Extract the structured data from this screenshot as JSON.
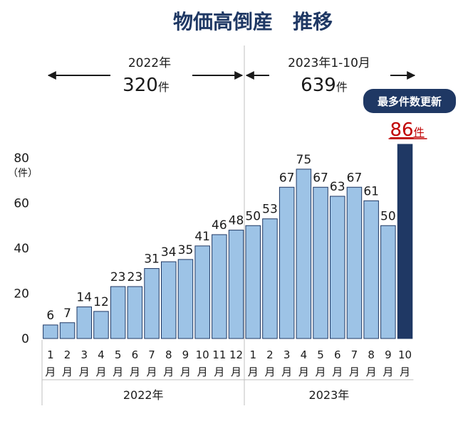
{
  "chart_data": {
    "type": "bar",
    "title": "物価高倒産　推移",
    "y_unit": "（件）",
    "ylim": [
      0,
      80
    ],
    "yticks": [
      0,
      20,
      40,
      60,
      80
    ],
    "grid": false,
    "categories": [
      {
        "month": "1",
        "suffix": "月",
        "year": "2022年"
      },
      {
        "month": "2",
        "suffix": "月",
        "year": "2022年"
      },
      {
        "month": "3",
        "suffix": "月",
        "year": "2022年"
      },
      {
        "month": "4",
        "suffix": "月",
        "year": "2022年"
      },
      {
        "month": "5",
        "suffix": "月",
        "year": "2022年"
      },
      {
        "month": "6",
        "suffix": "月",
        "year": "2022年"
      },
      {
        "month": "7",
        "suffix": "月",
        "year": "2022年"
      },
      {
        "month": "8",
        "suffix": "月",
        "year": "2022年"
      },
      {
        "month": "9",
        "suffix": "月",
        "year": "2022年"
      },
      {
        "month": "10",
        "suffix": "月",
        "year": "2022年"
      },
      {
        "month": "11",
        "suffix": "月",
        "year": "2022年"
      },
      {
        "month": "12",
        "suffix": "月",
        "year": "2022年"
      },
      {
        "month": "1",
        "suffix": "月",
        "year": "2023年"
      },
      {
        "month": "2",
        "suffix": "月",
        "year": "2023年"
      },
      {
        "month": "3",
        "suffix": "月",
        "year": "2023年"
      },
      {
        "month": "4",
        "suffix": "月",
        "year": "2023年"
      },
      {
        "month": "5",
        "suffix": "月",
        "year": "2023年"
      },
      {
        "month": "6",
        "suffix": "月",
        "year": "2023年"
      },
      {
        "month": "7",
        "suffix": "月",
        "year": "2023年"
      },
      {
        "month": "8",
        "suffix": "月",
        "year": "2023年"
      },
      {
        "month": "9",
        "suffix": "月",
        "year": "2023年"
      },
      {
        "month": "10",
        "suffix": "月",
        "year": "2023年"
      }
    ],
    "values": [
      6,
      7,
      14,
      12,
      23,
      23,
      31,
      34,
      35,
      41,
      46,
      48,
      50,
      53,
      67,
      75,
      67,
      63,
      67,
      61,
      50,
      86
    ],
    "highlight_index": 21,
    "periods": [
      {
        "label": "2022年",
        "total": "320",
        "unit": "件",
        "start": 0,
        "end": 11
      },
      {
        "label": "2023年1-10月",
        "total": "639",
        "unit": "件",
        "start": 12,
        "end": 21
      }
    ],
    "highlight_badge": "最多件数更新",
    "highlight_value_text": "86",
    "highlight_unit": "件",
    "colors": {
      "bar": "#9dc3e6",
      "bar_stroke": "#1f3864",
      "highlight": "#1f3864",
      "highlight_text": "#c00000",
      "title": "#1f3864",
      "divider": "#bfbfbf"
    }
  }
}
